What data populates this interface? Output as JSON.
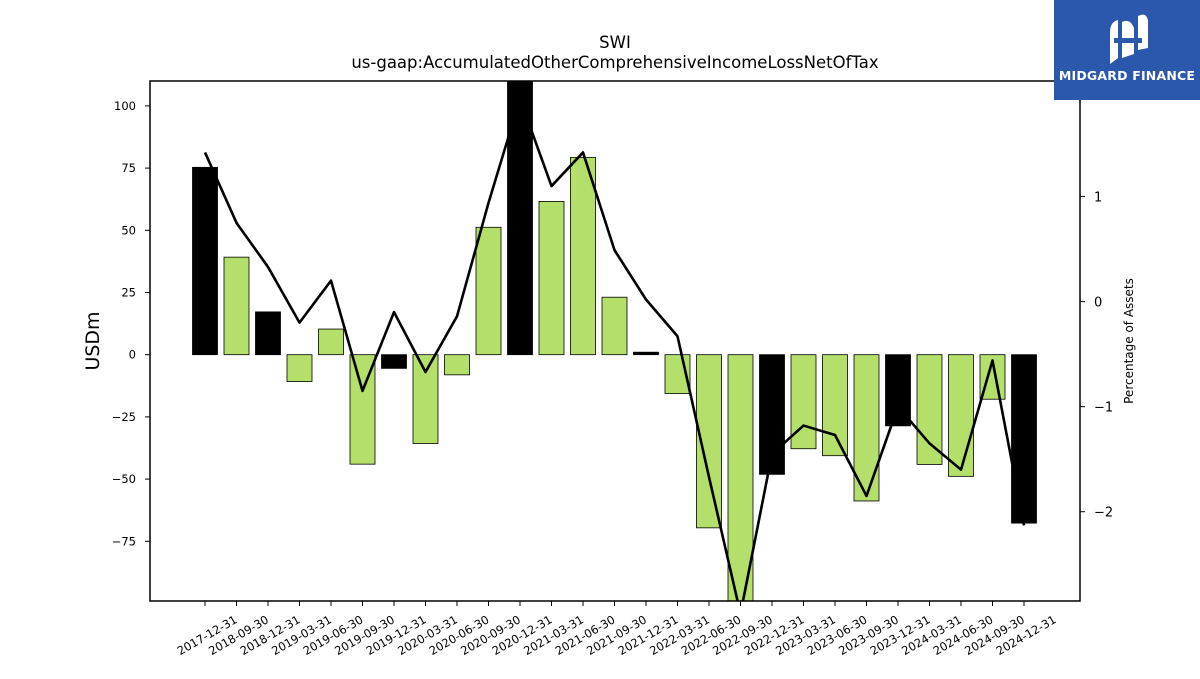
{
  "chart_data": {
    "type": "bar",
    "title": "SWI",
    "subtitle": "us-gaap:AccumulatedOtherComprehensiveIncomeLossNetOfTax",
    "ylabel": "USDm",
    "y2label": "Percentage of Assets",
    "ylim": [
      -99,
      110
    ],
    "y2lim": [
      -2.85,
      2.1
    ],
    "yticks": [
      -75,
      -50,
      -25,
      0,
      25,
      50,
      75,
      100
    ],
    "y2ticks": [
      -2,
      -1,
      0,
      1
    ],
    "categories": [
      "2017-12-31",
      "2018-09-30",
      "2018-12-31",
      "2019-03-31",
      "2019-06-30",
      "2019-09-30",
      "2019-12-31",
      "2020-03-31",
      "2020-06-30",
      "2020-09-30",
      "2020-12-31",
      "2021-03-31",
      "2021-06-30",
      "2021-09-30",
      "2021-12-31",
      "2022-03-31",
      "2022-06-30",
      "2022-09-30",
      "2022-12-31",
      "2023-03-31",
      "2023-06-30",
      "2023-09-30",
      "2023-12-31",
      "2024-03-31",
      "2024-06-30",
      "2024-09-30",
      "2024-12-31"
    ],
    "series": [
      {
        "kind": "bar",
        "values": [
          75.3,
          39.2,
          17.2,
          -10.8,
          10.3,
          -44.0,
          -5.5,
          -35.7,
          -8.1,
          51.2,
          110,
          61.6,
          79.3,
          23.1,
          1.0,
          -15.6,
          -69.6,
          -99,
          -48.1,
          -37.8,
          -40.6,
          -58.8,
          -28.6,
          -44.1,
          -48.9,
          -17.9,
          -67.7
        ],
        "colors": [
          "#000000",
          "#b3df6a",
          "#000000",
          "#b3df6a",
          "#b3df6a",
          "#b3df6a",
          "#000000",
          "#b3df6a",
          "#b3df6a",
          "#b3df6a",
          "#000000",
          "#b3df6a",
          "#b3df6a",
          "#b3df6a",
          "#000000",
          "#b3df6a",
          "#b3df6a",
          "#b3df6a",
          "#000000",
          "#b3df6a",
          "#b3df6a",
          "#b3df6a",
          "#000000",
          "#b3df6a",
          "#b3df6a",
          "#b3df6a",
          "#000000"
        ]
      },
      {
        "kind": "line",
        "axis": "right",
        "color": "#000000",
        "values": [
          1.42,
          0.75,
          0.33,
          -0.2,
          0.2,
          -0.85,
          -0.1,
          -0.67,
          -0.14,
          0.94,
          1.93,
          1.1,
          1.42,
          0.49,
          0.02,
          -0.33,
          -1.67,
          -2.97,
          -1.45,
          -1.18,
          -1.27,
          -1.85,
          -1.0,
          -1.35,
          -1.6,
          -0.56,
          -2.13
        ]
      }
    ]
  },
  "logo": {
    "text": "MIDGARD FINANCE",
    "icon": "midgard-logo-icon"
  }
}
